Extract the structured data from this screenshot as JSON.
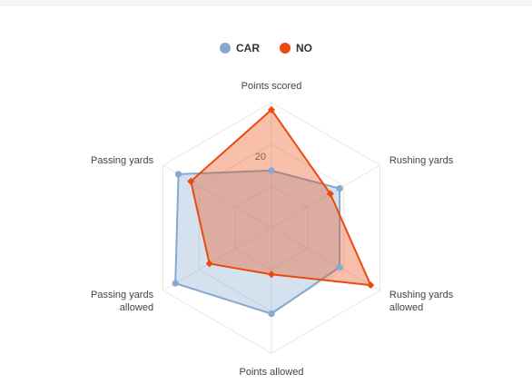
{
  "chart_data": {
    "type": "radar",
    "axes": [
      "Points scored",
      "Rushing yards",
      "Rushing yards allowed",
      "Points allowed",
      "Passing yards allowed",
      "Passing yards"
    ],
    "scale_max": 35,
    "grid_levels": 3,
    "ticks": [
      {
        "value": 20,
        "label": "20"
      }
    ],
    "grid": true,
    "legend_position": "top-center",
    "series": [
      {
        "name": "CAR",
        "color": "#86a9cf",
        "values": [
          16,
          22,
          22,
          24,
          31,
          30
        ]
      },
      {
        "name": "NO",
        "color": "#ea4a0e",
        "values": [
          33,
          19,
          32,
          13,
          20,
          26
        ]
      }
    ]
  }
}
